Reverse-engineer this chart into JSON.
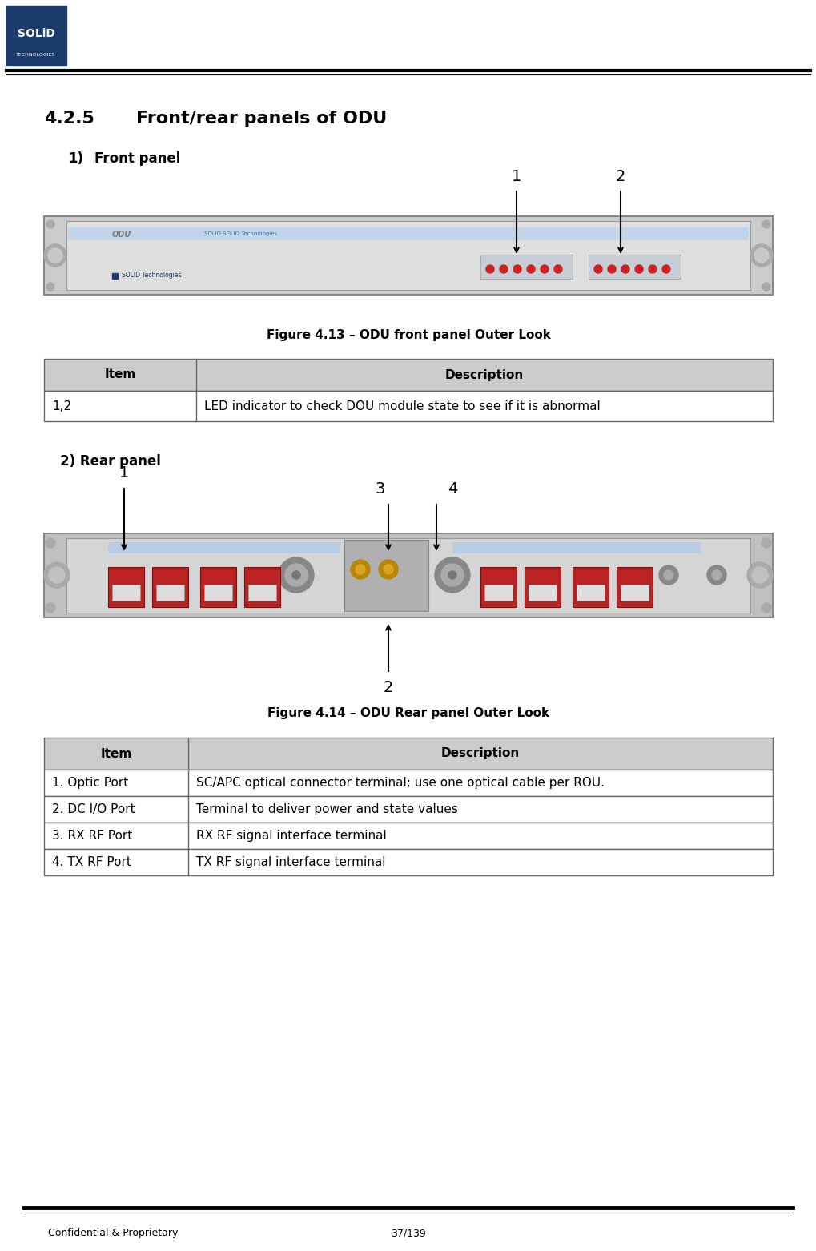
{
  "page_title": "4.2.5",
  "section_title": "Front/rear panels of ODU",
  "subsection1_num": "1)",
  "subsection1_text": "Front panel",
  "fig1_caption": "Figure 4.13 – ODU front panel Outer Look",
  "table1_header": [
    "Item",
    "Description"
  ],
  "table1_rows": [
    [
      "1,2",
      "LED indicator to check DOU module state to see if it is abnormal"
    ]
  ],
  "subsection2": "2) Rear panel",
  "fig2_caption": "Figure 4.14 – ODU Rear panel Outer Look",
  "table2_header": [
    "Item",
    "Description"
  ],
  "table2_rows": [
    [
      "1. Optic Port",
      "SC/APC optical connector terminal; use one optical cable per ROU."
    ],
    [
      "2. DC I/O Port",
      "Terminal to deliver power and state values"
    ],
    [
      "3. RX RF Port",
      "RX RF signal interface terminal"
    ],
    [
      "4. TX RF Port",
      "TX RF signal interface terminal"
    ]
  ],
  "footer_left": "Confidential & Proprietary",
  "footer_right": "37/139",
  "bg_color": "#ffffff",
  "table_header_bg": "#cccccc",
  "table_row_bg": "#ffffff",
  "table_border_color": "#666666",
  "logo_blue_dark": "#1a3a6b",
  "front_panel_color": "#d0d0d0",
  "rear_panel_color": "#c8c8c8"
}
